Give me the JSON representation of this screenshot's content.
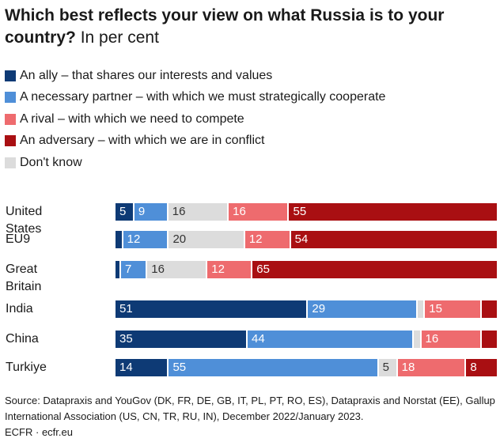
{
  "title": {
    "main": "Which best reflects your view on what Russia is to your country?",
    "sub": "In per cent"
  },
  "legend": [
    {
      "label": "An ally – that shares our interests and values",
      "color": "#0e3a75"
    },
    {
      "label": "A necessary partner – with which we must strategically cooperate",
      "color": "#4f8fd8"
    },
    {
      "label": "A rival – with which we need to compete",
      "color": "#ee6b6e"
    },
    {
      "label": "An adversary – with which we are in conflict",
      "color": "#a90f12"
    },
    {
      "label": "Don't know",
      "color": "#dcdcdc"
    }
  ],
  "chart_data": {
    "type": "bar",
    "orientation": "horizontal",
    "stacked": true,
    "xlim": [
      0,
      100
    ],
    "categories": [
      "United States",
      "EU9",
      "Great Britain",
      "India",
      "China",
      "Turkiye"
    ],
    "series": [
      {
        "name": "An ally – that shares our interests and values",
        "color": "#0e3a75",
        "values": [
          5,
          2,
          1,
          51,
          35,
          14
        ],
        "labels": [
          "5",
          "",
          "",
          "51",
          "35",
          "14"
        ]
      },
      {
        "name": "A necessary partner – with which we must strategically cooperate",
        "color": "#4f8fd8",
        "values": [
          9,
          12,
          7,
          29,
          44,
          55
        ],
        "labels": [
          "9",
          "12",
          "7",
          "29",
          "44",
          "55"
        ]
      },
      {
        "name": "Don't know",
        "color": "#dcdcdc",
        "values": [
          16,
          20,
          16,
          2,
          2,
          5
        ],
        "labels": [
          "16",
          "20",
          "16",
          "",
          "",
          "5"
        ]
      },
      {
        "name": "A rival – with which we need to compete",
        "color": "#ee6b6e",
        "values": [
          16,
          12,
          12,
          15,
          16,
          18
        ],
        "labels": [
          "16",
          "12",
          "12",
          "15",
          "16",
          "18"
        ]
      },
      {
        "name": "An adversary – with which we are in conflict",
        "color": "#a90f12",
        "values": [
          55,
          54,
          65,
          4,
          4,
          8
        ],
        "labels": [
          "55",
          "54",
          "65",
          "",
          "",
          "8"
        ]
      }
    ]
  },
  "source": {
    "text": "Source: Datapraxis and YouGov (DK, FR, DE, GB, IT, PL, PT, RO, ES), Datapraxis and Norstat (EE), Gallup International Association (US, CN, TR, RU, IN), December 2022/January 2023.",
    "credit": "ECFR · ecfr.eu"
  }
}
